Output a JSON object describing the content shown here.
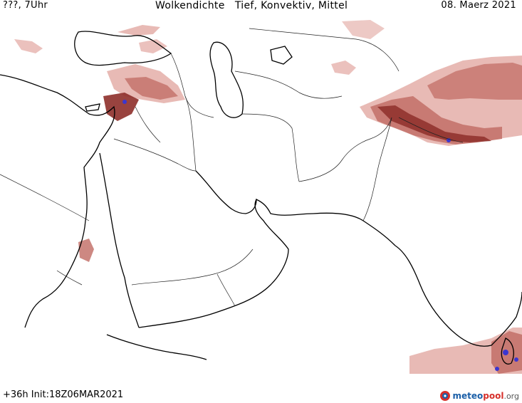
{
  "header": {
    "left": "???, 7Uhr",
    "title": "Wolkendichte   Tief, Konvektiv, Mittel",
    "date": "08. Maerz 2021"
  },
  "footer": {
    "run": "+36h  Init:18Z06MAR2021",
    "brand_a": "meteo",
    "brand_b": "pool",
    "brand_c": ".org"
  },
  "colors": {
    "cloud_light": "#e6b2ad",
    "cloud_mid": "#c4736c",
    "cloud_dark": "#8e2f2a",
    "convective": "#3a36d0",
    "coast": "#000000",
    "border": "#222222"
  },
  "icons": [
    "meteopool-logo-icon"
  ]
}
